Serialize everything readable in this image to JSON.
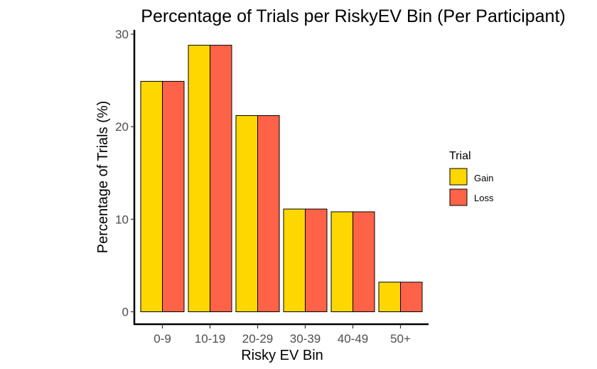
{
  "chart_data": {
    "type": "bar",
    "title": "Percentage of Trials per RiskyEV Bin (Per Participant)",
    "xlabel": "Risky EV Bin",
    "ylabel": "Percentage of Trials (%)",
    "categories": [
      "0-9",
      "10-19",
      "20-29",
      "30-39",
      "40-49",
      "50+"
    ],
    "series": [
      {
        "name": "Gain",
        "color": "#FFD700",
        "values": [
          24.9,
          28.8,
          21.2,
          11.1,
          10.8,
          3.2
        ]
      },
      {
        "name": "Loss",
        "color": "#FF6347",
        "values": [
          24.9,
          28.8,
          21.2,
          11.1,
          10.8,
          3.2
        ]
      }
    ],
    "yticks": [
      0,
      10,
      20,
      30
    ],
    "ylim": [
      -1.2,
      30.2
    ],
    "grid": false,
    "legend": {
      "title": "Trial",
      "position": "right"
    }
  }
}
